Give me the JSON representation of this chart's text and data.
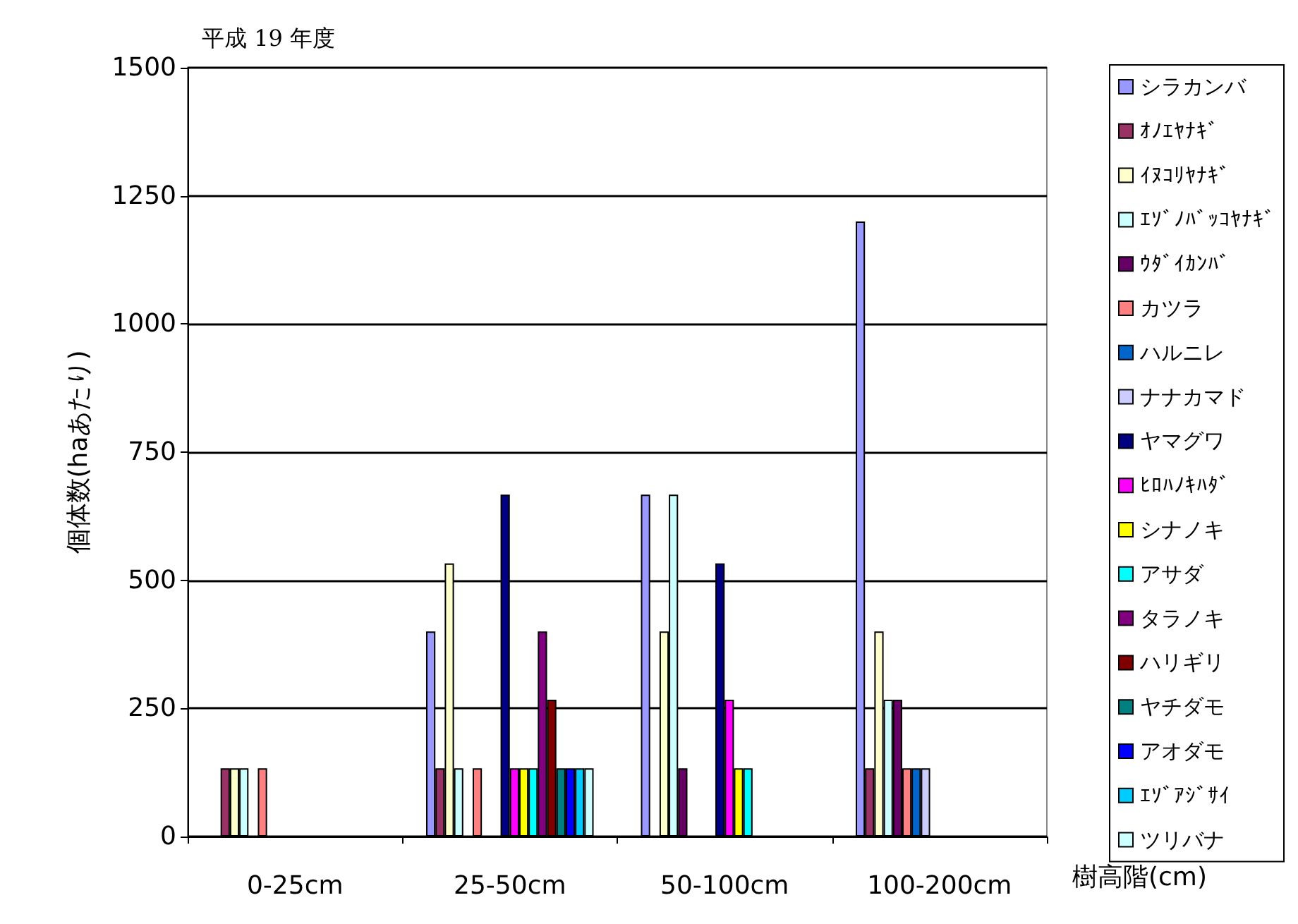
{
  "chart_data": {
    "type": "bar",
    "title": "平成 19 年度",
    "ylabel": "個体数(haあたり)",
    "xlabel": "樹高階(cm)",
    "categories": [
      "0-25cm",
      "25-50cm",
      "50-100cm",
      "100-200cm"
    ],
    "ylim": [
      0,
      1500
    ],
    "yticks": [
      0,
      250,
      500,
      750,
      1000,
      1250,
      1500
    ],
    "grid": "y",
    "legend": "right",
    "series": [
      {
        "name": "シラカンバ",
        "color": "#9999ff",
        "values": [
          null,
          400,
          667,
          1200
        ]
      },
      {
        "name": "ｵﾉｴﾔﾅｷﾞ",
        "color": "#993366",
        "values": [
          133,
          133,
          null,
          133
        ]
      },
      {
        "name": "ｲﾇｺﾘﾔﾅｷﾞ",
        "color": "#ffffcc",
        "values": [
          133,
          533,
          400,
          400
        ]
      },
      {
        "name": "ｴｿﾞﾉﾊﾞｯｺﾔﾅｷﾞ",
        "color": "#ccffff",
        "values": [
          133,
          133,
          667,
          267
        ]
      },
      {
        "name": "ｳﾀﾞｲｶﾝﾊﾞ",
        "color": "#660066",
        "values": [
          null,
          null,
          133,
          267
        ]
      },
      {
        "name": "カツラ",
        "color": "#ff8080",
        "values": [
          133,
          133,
          null,
          133
        ]
      },
      {
        "name": "ハルニレ",
        "color": "#0066cc",
        "values": [
          null,
          null,
          null,
          133
        ]
      },
      {
        "name": "ナナカマド",
        "color": "#ccccff",
        "values": [
          null,
          null,
          null,
          133
        ]
      },
      {
        "name": "ヤマグワ",
        "color": "#000080",
        "values": [
          null,
          667,
          533,
          null
        ]
      },
      {
        "name": "ﾋﾛﾊﾉｷﾊﾀﾞ",
        "color": "#ff00ff",
        "values": [
          null,
          133,
          267,
          null
        ]
      },
      {
        "name": "シナノキ",
        "color": "#ffff00",
        "values": [
          null,
          133,
          133,
          null
        ]
      },
      {
        "name": "アサダ",
        "color": "#00ffff",
        "values": [
          null,
          133,
          133,
          null
        ]
      },
      {
        "name": "タラノキ",
        "color": "#800080",
        "values": [
          null,
          400,
          null,
          null
        ]
      },
      {
        "name": "ハリギリ",
        "color": "#800000",
        "values": [
          null,
          267,
          null,
          null
        ]
      },
      {
        "name": "ヤチダモ",
        "color": "#008080",
        "values": [
          null,
          133,
          null,
          null
        ]
      },
      {
        "name": "アオダモ",
        "color": "#0000ff",
        "values": [
          null,
          133,
          null,
          null
        ]
      },
      {
        "name": "ｴｿﾞｱｼﾞｻｲ",
        "color": "#00ccff",
        "values": [
          null,
          133,
          null,
          null
        ]
      },
      {
        "name": "ツリバナ",
        "color": "#ccffff",
        "values": [
          null,
          133,
          null,
          null
        ]
      }
    ]
  }
}
